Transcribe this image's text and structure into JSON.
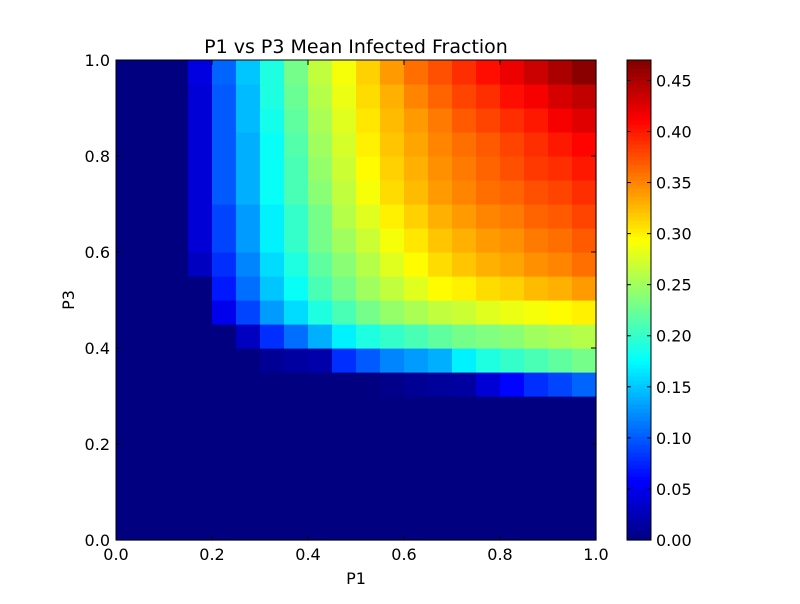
{
  "chart_data": {
    "type": "heatmap",
    "title": "P1 vs P3 Mean Infected Fraction",
    "xlabel": "P1",
    "ylabel": "P3",
    "xlim": [
      0,
      1
    ],
    "ylim": [
      0,
      1
    ],
    "x_ticks": [
      "0.0",
      "0.2",
      "0.4",
      "0.6",
      "0.8",
      "1.0"
    ],
    "y_ticks": [
      "0.0",
      "0.2",
      "0.4",
      "0.6",
      "0.8",
      "1.0"
    ],
    "colorbar": {
      "colormap": "jet",
      "min": 0.0,
      "max": 0.47,
      "ticks": [
        "0.00",
        "0.05",
        "0.10",
        "0.15",
        "0.20",
        "0.25",
        "0.30",
        "0.35",
        "0.40",
        "0.45"
      ],
      "placement": "right"
    },
    "grid": false,
    "axis_description": "Each cell covers a 0.05 x 0.05 region of (P1, P3); rows listed from P3=0.00 (bottom) to P3=0.95 (top), columns from P1=0.00 to P1=0.95.",
    "values": [
      [
        0,
        0,
        0,
        0,
        0,
        0,
        0,
        0,
        0,
        0,
        0,
        0,
        0,
        0,
        0,
        0,
        0,
        0,
        0,
        0
      ],
      [
        0,
        0,
        0,
        0,
        0,
        0,
        0,
        0,
        0,
        0,
        0,
        0,
        0,
        0,
        0,
        0,
        0,
        0,
        0,
        0
      ],
      [
        0,
        0,
        0,
        0,
        0,
        0,
        0,
        0,
        0,
        0,
        0,
        0,
        0,
        0,
        0,
        0,
        0,
        0,
        0,
        0
      ],
      [
        0,
        0,
        0,
        0,
        0,
        0,
        0,
        0,
        0,
        0,
        0,
        0,
        0,
        0,
        0,
        0,
        0,
        0,
        0,
        0
      ],
      [
        0,
        0,
        0,
        0,
        0,
        0,
        0,
        0,
        0,
        0,
        0,
        0,
        0,
        0,
        0,
        0,
        0,
        0,
        0,
        0
      ],
      [
        0,
        0,
        0,
        0,
        0,
        0,
        0,
        0,
        0,
        0,
        0,
        0,
        0,
        0,
        0,
        0,
        0,
        0,
        0,
        0
      ],
      [
        0,
        0,
        0,
        0,
        0,
        0,
        0,
        0,
        0,
        0,
        0,
        0.005,
        0.01,
        0.012,
        0.015,
        0.04,
        0.06,
        0.08,
        0.09,
        0.105
      ],
      [
        0,
        0,
        0,
        0,
        0,
        0,
        0.01,
        0.015,
        0.02,
        0.08,
        0.1,
        0.12,
        0.13,
        0.14,
        0.17,
        0.19,
        0.2,
        0.21,
        0.22,
        0.23
      ],
      [
        0,
        0,
        0,
        0,
        0,
        0.03,
        0.08,
        0.11,
        0.14,
        0.17,
        0.19,
        0.2,
        0.21,
        0.22,
        0.23,
        0.235,
        0.24,
        0.25,
        0.255,
        0.26
      ],
      [
        0,
        0,
        0,
        0,
        0.05,
        0.09,
        0.13,
        0.16,
        0.19,
        0.21,
        0.23,
        0.245,
        0.255,
        0.265,
        0.27,
        0.28,
        0.285,
        0.29,
        0.295,
        0.3
      ],
      [
        0,
        0,
        0,
        0,
        0.07,
        0.11,
        0.15,
        0.18,
        0.21,
        0.23,
        0.25,
        0.265,
        0.28,
        0.295,
        0.3,
        0.31,
        0.315,
        0.325,
        0.33,
        0.34
      ],
      [
        0,
        0,
        0,
        0.03,
        0.08,
        0.12,
        0.16,
        0.19,
        0.22,
        0.24,
        0.26,
        0.28,
        0.295,
        0.31,
        0.32,
        0.33,
        0.335,
        0.345,
        0.35,
        0.36
      ],
      [
        0,
        0,
        0,
        0.04,
        0.09,
        0.13,
        0.17,
        0.2,
        0.23,
        0.25,
        0.27,
        0.29,
        0.305,
        0.32,
        0.33,
        0.34,
        0.345,
        0.355,
        0.36,
        0.37
      ],
      [
        0,
        0,
        0,
        0.04,
        0.09,
        0.13,
        0.17,
        0.2,
        0.23,
        0.26,
        0.28,
        0.3,
        0.315,
        0.33,
        0.34,
        0.35,
        0.355,
        0.365,
        0.37,
        0.38
      ],
      [
        0,
        0,
        0,
        0.04,
        0.1,
        0.14,
        0.18,
        0.21,
        0.24,
        0.265,
        0.29,
        0.31,
        0.325,
        0.34,
        0.35,
        0.36,
        0.365,
        0.375,
        0.38,
        0.39
      ],
      [
        0,
        0,
        0,
        0.04,
        0.1,
        0.14,
        0.18,
        0.21,
        0.245,
        0.27,
        0.295,
        0.315,
        0.33,
        0.345,
        0.355,
        0.365,
        0.375,
        0.385,
        0.39,
        0.4
      ],
      [
        0,
        0,
        0,
        0.04,
        0.1,
        0.14,
        0.18,
        0.215,
        0.25,
        0.275,
        0.3,
        0.32,
        0.335,
        0.35,
        0.36,
        0.37,
        0.38,
        0.39,
        0.4,
        0.41
      ],
      [
        0,
        0,
        0,
        0.04,
        0.1,
        0.145,
        0.185,
        0.22,
        0.255,
        0.28,
        0.305,
        0.325,
        0.34,
        0.355,
        0.37,
        0.38,
        0.39,
        0.4,
        0.415,
        0.425
      ],
      [
        0,
        0,
        0,
        0.04,
        0.1,
        0.145,
        0.19,
        0.225,
        0.26,
        0.285,
        0.31,
        0.33,
        0.35,
        0.365,
        0.38,
        0.39,
        0.405,
        0.415,
        0.43,
        0.44
      ],
      [
        0,
        0,
        0,
        0.045,
        0.105,
        0.15,
        0.19,
        0.23,
        0.265,
        0.29,
        0.315,
        0.34,
        0.36,
        0.375,
        0.39,
        0.405,
        0.42,
        0.435,
        0.45,
        0.465
      ]
    ]
  }
}
